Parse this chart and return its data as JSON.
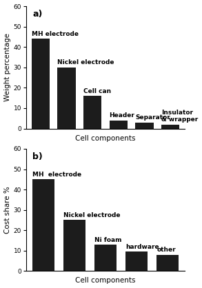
{
  "chart_a": {
    "label": "a)",
    "values": [
      44,
      30,
      16,
      4,
      3,
      2
    ],
    "bar_labels": [
      "MH electrode",
      "Nickel electrode",
      "Cell can",
      "Header",
      "Separator",
      "Insulator\n& wrapper"
    ],
    "ylabel": "Weight percentage",
    "xlabel": "Cell components",
    "ylim": [
      0,
      60
    ],
    "yticks": [
      0,
      10,
      20,
      30,
      40,
      50,
      60
    ]
  },
  "chart_b": {
    "label": "b)",
    "values": [
      45,
      25,
      13,
      9.5,
      8
    ],
    "bar_labels": [
      "MH  electrode",
      "Nickel electrode",
      "Ni foam",
      "hardware",
      "other"
    ],
    "ylabel": "Cost share %",
    "xlabel": "Cell components",
    "ylim": [
      0,
      60
    ],
    "yticks": [
      0,
      10,
      20,
      30,
      40,
      50,
      60
    ]
  },
  "bar_color": "#1c1c1c",
  "bar_width": 0.7,
  "background_color": "#ffffff",
  "bar_label_fontsize": 6.5,
  "axis_label_fontsize": 7.5,
  "tick_fontsize": 6.5,
  "panel_label_fontsize": 9
}
